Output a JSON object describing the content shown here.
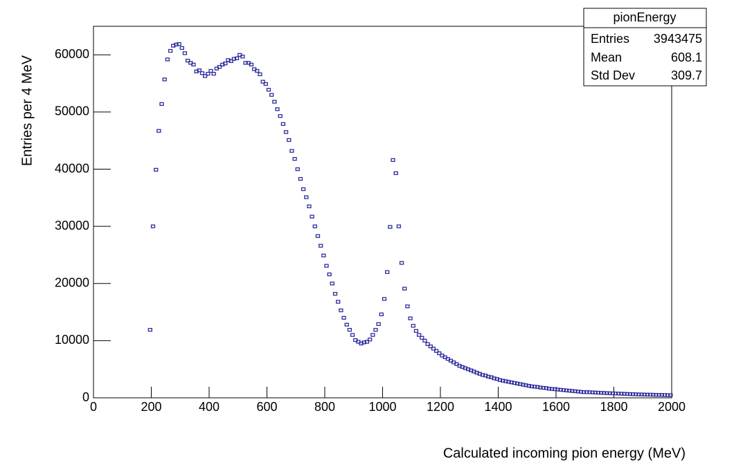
{
  "chart_data": {
    "type": "scatter",
    "x_label": "Calculated incoming pion energy (MeV)",
    "y_label": "Entries per 4 MeV",
    "color": "#2b2b9c",
    "xlim": [
      0,
      2000
    ],
    "ylim": [
      0,
      65000
    ],
    "xticks": [
      0,
      200,
      400,
      600,
      800,
      1000,
      1200,
      1400,
      1600,
      1800,
      2000
    ],
    "yticks": [
      0,
      10000,
      20000,
      30000,
      40000,
      50000,
      60000
    ],
    "stats": {
      "title": "pionEnergy",
      "rows": [
        [
          "Entries",
          "3943475"
        ],
        [
          "Mean",
          "608.1"
        ],
        [
          "Std Dev",
          "309.7"
        ]
      ]
    },
    "x": [
      196,
      206,
      216,
      226,
      236,
      246,
      256,
      266,
      276,
      286,
      296,
      306,
      316,
      326,
      336,
      346,
      356,
      366,
      376,
      386,
      396,
      406,
      416,
      426,
      436,
      446,
      456,
      466,
      476,
      486,
      496,
      506,
      516,
      526,
      536,
      546,
      556,
      566,
      576,
      586,
      596,
      606,
      616,
      626,
      636,
      646,
      656,
      666,
      676,
      686,
      696,
      706,
      716,
      726,
      736,
      746,
      756,
      766,
      776,
      786,
      796,
      806,
      816,
      826,
      836,
      846,
      856,
      866,
      876,
      886,
      896,
      906,
      916,
      926,
      936,
      946,
      956,
      966,
      976,
      986,
      996,
      1006,
      1016,
      1026,
      1036,
      1046,
      1056,
      1066,
      1076,
      1086,
      1096,
      1106,
      1116,
      1126,
      1136,
      1146,
      1156,
      1166,
      1176,
      1186,
      1196,
      1206,
      1216,
      1226,
      1236,
      1246,
      1256,
      1266,
      1276,
      1286,
      1296,
      1306,
      1316,
      1326,
      1336,
      1346,
      1356,
      1366,
      1376,
      1386,
      1396,
      1406,
      1416,
      1426,
      1436,
      1446,
      1456,
      1466,
      1476,
      1486,
      1496,
      1506,
      1516,
      1526,
      1536,
      1546,
      1556,
      1566,
      1576,
      1586,
      1596,
      1606,
      1616,
      1626,
      1636,
      1646,
      1656,
      1666,
      1676,
      1686,
      1696,
      1706,
      1716,
      1726,
      1736,
      1746,
      1756,
      1766,
      1776,
      1786,
      1796,
      1806,
      1816,
      1826,
      1836,
      1846,
      1856,
      1866,
      1876,
      1886,
      1896,
      1906,
      1916,
      1926,
      1936,
      1946,
      1956,
      1966,
      1976,
      1986,
      1996
    ],
    "values": [
      11900,
      30000,
      39900,
      46700,
      51400,
      55700,
      59200,
      60700,
      61600,
      61800,
      61900,
      61200,
      60300,
      59000,
      58600,
      58300,
      57100,
      57300,
      56800,
      56300,
      56700,
      57200,
      56700,
      57600,
      57900,
      58300,
      58500,
      59100,
      58900,
      59300,
      59400,
      60000,
      59700,
      58600,
      58600,
      58300,
      57500,
      57200,
      56600,
      55300,
      54900,
      53900,
      53000,
      51800,
      50500,
      49300,
      47900,
      46500,
      45100,
      43200,
      41800,
      40000,
      38300,
      36500,
      35100,
      33500,
      31700,
      30000,
      28300,
      26600,
      24900,
      23100,
      21600,
      20000,
      18200,
      16800,
      15300,
      14000,
      12800,
      11900,
      11000,
      10100,
      9800,
      9500,
      9700,
      9800,
      10200,
      11000,
      11900,
      12900,
      14600,
      17300,
      22000,
      29900,
      41600,
      39300,
      30000,
      23600,
      19100,
      16000,
      13900,
      12600,
      11700,
      11000,
      10500,
      10000,
      9400,
      9000,
      8600,
      8200,
      7800,
      7400,
      7100,
      6800,
      6500,
      6200,
      5900,
      5600,
      5400,
      5200,
      5000,
      4800,
      4600,
      4400,
      4200,
      4000,
      3900,
      3700,
      3600,
      3400,
      3300,
      3100,
      3000,
      2900,
      2800,
      2700,
      2600,
      2500,
      2400,
      2300,
      2200,
      2100,
      2000,
      1950,
      1900,
      1800,
      1750,
      1700,
      1600,
      1550,
      1500,
      1450,
      1400,
      1350,
      1300,
      1250,
      1200,
      1150,
      1100,
      1050,
      1000,
      1000,
      980,
      950,
      920,
      900,
      870,
      850,
      820,
      800,
      780,
      760,
      740,
      720,
      700,
      680,
      660,
      640,
      620,
      600,
      590,
      570,
      560,
      550,
      540,
      520,
      510,
      500,
      490,
      480,
      470
    ]
  }
}
